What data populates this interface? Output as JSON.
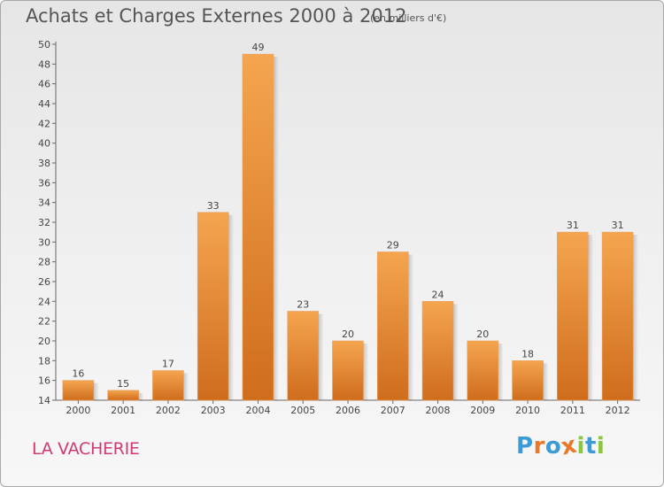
{
  "header": {
    "title": "Achats et Charges Externes 2000 à 2012",
    "unit": "(en milliers d'€)"
  },
  "footer": {
    "place": "LA VACHERIE",
    "logo_text": "Proxiti",
    "logo_colors": [
      "#3a9bd6",
      "#e8782a",
      "#3a9bd6",
      "#e8782a",
      "#8cc63f",
      "#3a9bd6",
      "#8cc63f"
    ]
  },
  "colors": {
    "bar_light": "#f5a54f",
    "bar_dark": "#cf6d1c",
    "place_text": "#d03a74"
  },
  "chart_data": {
    "type": "bar",
    "title": "Achats et Charges Externes 2000 à 2012",
    "subtitle": "(en milliers d'€)",
    "xlabel": "",
    "ylabel": "",
    "categories": [
      "2000",
      "2001",
      "2002",
      "2003",
      "2004",
      "2005",
      "2006",
      "2007",
      "2008",
      "2009",
      "2010",
      "2011",
      "2012"
    ],
    "values": [
      16,
      15,
      17,
      33,
      49,
      23,
      20,
      29,
      24,
      20,
      18,
      31,
      31
    ],
    "ylim": [
      14,
      50
    ],
    "yticks": [
      14,
      16,
      18,
      20,
      22,
      24,
      26,
      28,
      30,
      32,
      34,
      36,
      38,
      40,
      42,
      44,
      46,
      48,
      50
    ],
    "grid": false,
    "legend": "none"
  }
}
